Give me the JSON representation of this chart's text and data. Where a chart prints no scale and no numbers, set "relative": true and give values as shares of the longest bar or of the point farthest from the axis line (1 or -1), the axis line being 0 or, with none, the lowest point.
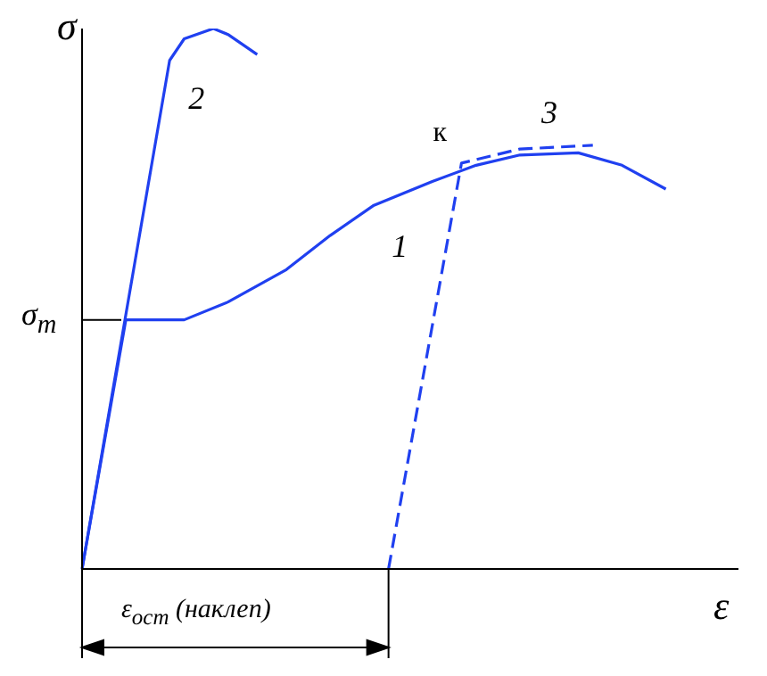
{
  "chart_data": {
    "type": "line",
    "relative": true,
    "xlabel": "ε",
    "ylabel": "σ",
    "categories": [
      null,
      null,
      null,
      null,
      null,
      null,
      null,
      null,
      null,
      null,
      null,
      null,
      null,
      null,
      null,
      null,
      null,
      null,
      null,
      null,
      null,
      null,
      null,
      null,
      null,
      null,
      null,
      null,
      null,
      null,
      null,
      null,
      null,
      null,
      null,
      null,
      null,
      null,
      null,
      null,
      null,
      null,
      null,
      null,
      null
    ],
    "series": [
      {
        "name": "1",
        "color": "#2040f0",
        "values": [
          0,
          null,
          null,
          0.461,
          null,
          null,
          null,
          0.461,
          null,
          null,
          0.494,
          null,
          null,
          null,
          0.554,
          null,
          null,
          0.617,
          null,
          null,
          0.673,
          null,
          null,
          null,
          0.717,
          null,
          null,
          0.747,
          null,
          null,
          0.766,
          null,
          null,
          null,
          0.77,
          null,
          null,
          0.747,
          null,
          null,
          0.703,
          null,
          null,
          null,
          null
        ]
      },
      {
        "name": "2",
        "color": "#2040f0",
        "values": [
          0,
          null,
          null,
          null,
          null,
          null,
          0.941,
          0.981,
          null,
          1,
          0.989,
          null,
          0.952,
          null,
          null,
          null,
          null,
          null,
          null,
          null,
          null,
          null,
          null,
          null,
          null,
          null,
          null,
          null,
          null,
          null,
          null,
          null,
          null,
          null,
          null,
          null,
          null,
          null,
          null,
          null,
          null,
          null,
          null,
          null,
          null
        ]
      },
      {
        "name": "3",
        "color": "#2040f0",
        "line_style": "dashed",
        "values": [
          null,
          null,
          null,
          null,
          null,
          null,
          null,
          null,
          null,
          null,
          null,
          null,
          null,
          null,
          null,
          null,
          null,
          null,
          null,
          null,
          null,
          0,
          null,
          null,
          null,
          null,
          0.751,
          null,
          null,
          null,
          0.777,
          null,
          null,
          null,
          null,
          0.784,
          null,
          null,
          null,
          null,
          null,
          null,
          null,
          null,
          null
        ]
      }
    ],
    "ref_lines": [
      {
        "axis": "y",
        "value": 0.461,
        "label": "σ$_{т}$"
      }
    ],
    "annotations": [
      "к",
      "ε$_{ост}$ (наклеп)"
    ],
    "legend": false,
    "marker": "none"
  }
}
